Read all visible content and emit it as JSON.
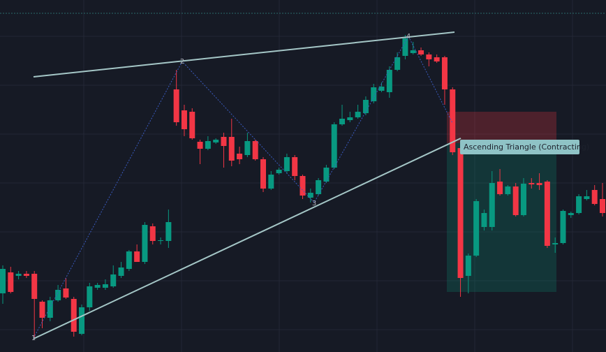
{
  "chart_data": {
    "type": "candlestick",
    "annotation": "Ascending Triangle (Contracting)",
    "pattern_points": [
      "1",
      "2",
      "3",
      "4"
    ],
    "ylim": [
      0,
      504
    ],
    "up_color": "#089981",
    "down_color": "#f23645",
    "open": [
      84,
      114,
      109,
      112,
      112,
      72,
      49,
      74,
      91,
      76,
      26,
      64,
      92,
      92,
      94,
      109,
      119,
      144,
      129,
      180,
      159,
      159,
      376,
      346,
      344,
      301,
      291,
      300,
      308,
      308,
      284,
      282,
      302,
      276,
      234,
      256,
      259,
      279,
      252,
      221,
      226,
      244,
      264,
      326,
      332,
      336,
      342,
      359,
      374,
      372,
      404,
      424,
      428,
      432,
      426,
      422,
      422,
      376,
      292,
      109,
      138,
      179,
      179,
      244,
      226,
      237,
      196,
      242,
      242,
      244,
      154,
      156,
      196,
      199,
      219,
      232,
      219
    ],
    "high": [
      124,
      122,
      116,
      116,
      116,
      74,
      79,
      96,
      106,
      79,
      68,
      99,
      99,
      104,
      124,
      129,
      146,
      154,
      186,
      184,
      164,
      204,
      404,
      354,
      349,
      304,
      309,
      306,
      314,
      334,
      294,
      314,
      304,
      279,
      259,
      264,
      284,
      282,
      254,
      234,
      249,
      268,
      329,
      354,
      344,
      354,
      366,
      384,
      386,
      409,
      429,
      454,
      444,
      436,
      429,
      426,
      424,
      379,
      294,
      141,
      219,
      204,
      259,
      262,
      239,
      242,
      249,
      249,
      256,
      246,
      164,
      204,
      201,
      226,
      232,
      239,
      242
    ],
    "low": [
      69,
      84,
      104,
      106,
      19,
      34,
      44,
      72,
      76,
      22,
      24,
      59,
      89,
      89,
      92,
      106,
      116,
      129,
      126,
      154,
      154,
      149,
      324,
      309,
      304,
      269,
      289,
      298,
      264,
      266,
      269,
      279,
      274,
      229,
      232,
      254,
      256,
      246,
      219,
      214,
      224,
      242,
      262,
      324,
      329,
      334,
      339,
      356,
      372,
      364,
      402,
      419,
      426,
      424,
      409,
      414,
      354,
      282,
      79,
      84,
      136,
      174,
      174,
      224,
      224,
      194,
      194,
      234,
      232,
      149,
      142,
      154,
      192,
      197,
      217,
      210,
      194
    ],
    "close": [
      119,
      86,
      112,
      109,
      76,
      49,
      74,
      89,
      78,
      29,
      64,
      94,
      96,
      97,
      111,
      121,
      144,
      129,
      182,
      159,
      160,
      186,
      329,
      319,
      306,
      291,
      302,
      304,
      295,
      274,
      276,
      302,
      276,
      234,
      254,
      261,
      279,
      252,
      224,
      228,
      246,
      264,
      326,
      334,
      336,
      344,
      361,
      379,
      380,
      404,
      422,
      449,
      432,
      426,
      419,
      416,
      376,
      286,
      106,
      138,
      216,
      199,
      242,
      226,
      237,
      196,
      241,
      240,
      239,
      152,
      156,
      202,
      199,
      223,
      223,
      212,
      199
    ]
  }
}
